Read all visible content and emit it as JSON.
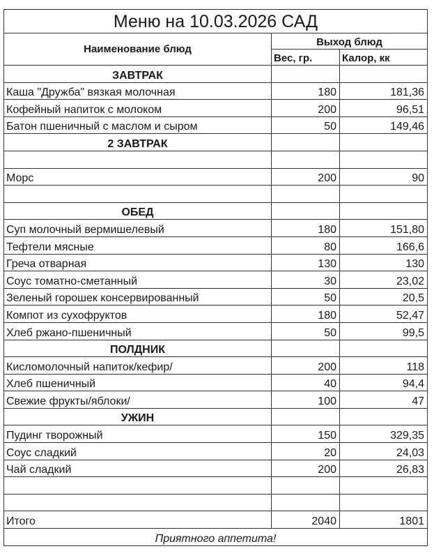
{
  "title": "Меню на 10.03.2026 САД",
  "header": {
    "name": "Наименование блюд",
    "output": "Выход блюд",
    "weight": "Вес, гр.",
    "calories": "Калор, кк"
  },
  "rows": [
    {
      "type": "section",
      "name": "ЗАВТРАК"
    },
    {
      "type": "item",
      "name": "Каша \"Дружба\" вязкая молочная",
      "weight": "180",
      "calories": "181,36"
    },
    {
      "type": "item",
      "name": "Кофейный напиток с молоком",
      "weight": "200",
      "calories": "96,51"
    },
    {
      "type": "item",
      "name": "Батон пшеничный с маслом и сыром",
      "weight": "50",
      "calories": "149,46"
    },
    {
      "type": "section",
      "name": "2 ЗАВТРАК"
    },
    {
      "type": "empty"
    },
    {
      "type": "item",
      "name": "Морс",
      "weight": "200",
      "calories": "90"
    },
    {
      "type": "empty"
    },
    {
      "type": "section",
      "name": "ОБЕД"
    },
    {
      "type": "item",
      "name": "Суп молочный вермишелевый",
      "weight": "180",
      "calories": "151,80"
    },
    {
      "type": "item",
      "name": "Тефтели мясные",
      "weight": "80",
      "calories": "166,6"
    },
    {
      "type": "item",
      "name": "Греча отварная",
      "weight": "130",
      "calories": "130"
    },
    {
      "type": "item",
      "name": "Соус томатно-сметанный",
      "weight": "30",
      "calories": "23,02"
    },
    {
      "type": "item",
      "name": "Зеленый горошек консервированный",
      "weight": "50",
      "calories": "20,5"
    },
    {
      "type": "item",
      "name": "Компот из сухофруктов",
      "weight": "180",
      "calories": "52,47"
    },
    {
      "type": "item",
      "name": "Хлеб ржано-пшеничный",
      "weight": "50",
      "calories": "99,5"
    },
    {
      "type": "section",
      "name": "ПОЛДНИК"
    },
    {
      "type": "item",
      "name": "Кисломолочный напиток/кефир/",
      "weight": "200",
      "calories": "118"
    },
    {
      "type": "item",
      "name": "Хлеб пшеничный",
      "weight": "40",
      "calories": "94,4"
    },
    {
      "type": "item",
      "name": "Свежие фрукты/яблоки/",
      "weight": "100",
      "calories": "47"
    },
    {
      "type": "section",
      "name": "УЖИН"
    },
    {
      "type": "item",
      "name": "Пудинг творожный",
      "weight": "150",
      "calories": "329,35"
    },
    {
      "type": "item",
      "name": "Соус сладкий",
      "weight": "20",
      "calories": "24,03"
    },
    {
      "type": "item",
      "name": "Чай сладкий",
      "weight": "200",
      "calories": "26,83"
    },
    {
      "type": "empty"
    },
    {
      "type": "empty"
    }
  ],
  "total": {
    "label": "Итого",
    "weight": "2040",
    "calories": "1801"
  },
  "footer": "Приятного аппетита!"
}
